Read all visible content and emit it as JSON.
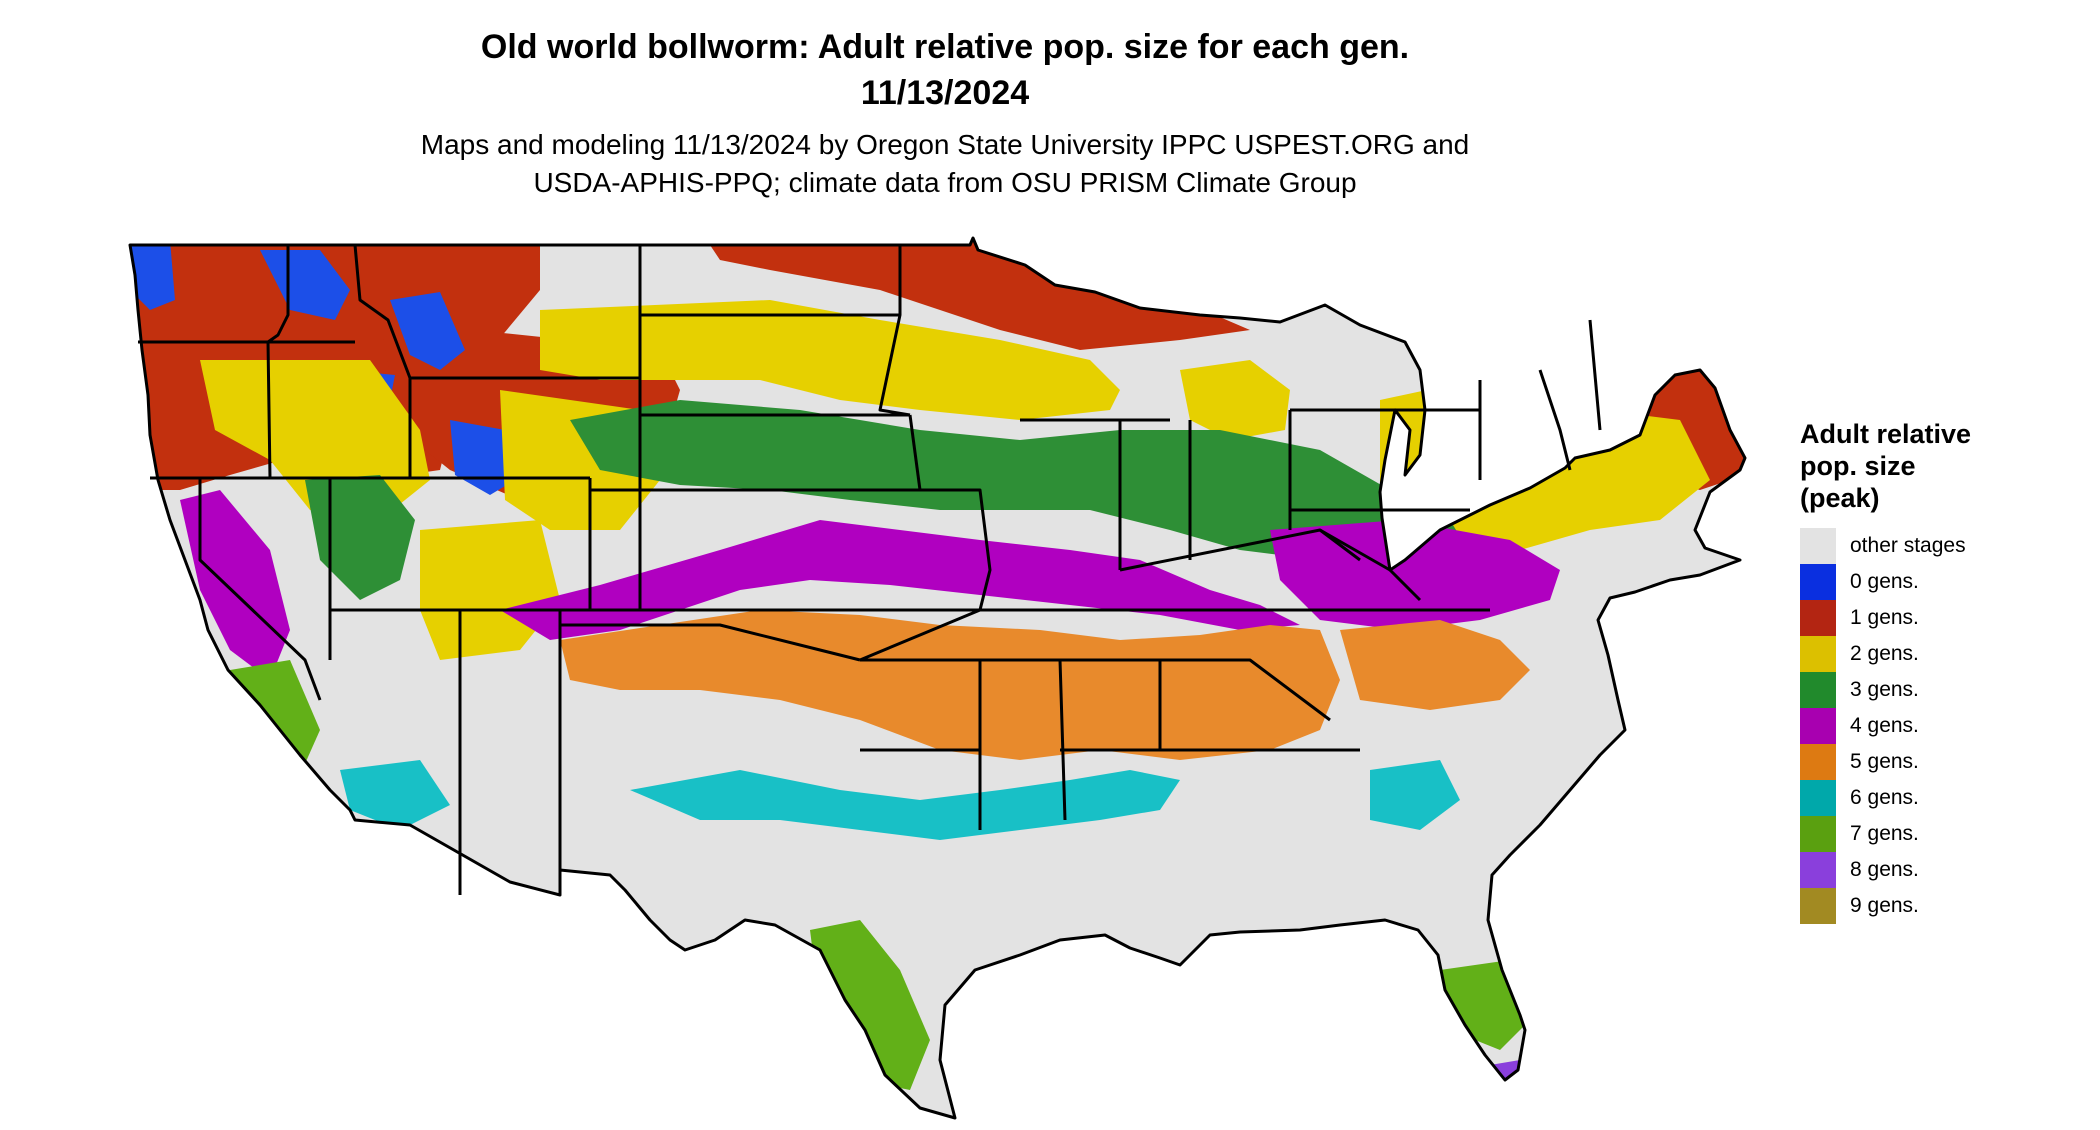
{
  "header": {
    "title_line1": "Old world bollworm: Adult relative pop. size for each gen.",
    "title_line2": "11/13/2024",
    "subtitle_line1": "Maps and modeling 11/13/2024 by Oregon State University IPPC USPEST.ORG and",
    "subtitle_line2": "USDA-APHIS-PPQ; climate data from OSU PRISM Climate Group"
  },
  "legend": {
    "title_line1": "Adult relative",
    "title_line2": "pop. size",
    "title_line3": "(peak)",
    "items": [
      {
        "label": "other stages",
        "color": "#e3e3e3"
      },
      {
        "label": "0 gens.",
        "color": "#0a2fe0"
      },
      {
        "label": "1 gens.",
        "color": "#b32512"
      },
      {
        "label": "2 gens.",
        "color": "#dcc000"
      },
      {
        "label": "3 gens.",
        "color": "#218a2c"
      },
      {
        "label": "4 gens.",
        "color": "#a800b0"
      },
      {
        "label": "5 gens.",
        "color": "#dd7a12"
      },
      {
        "label": "6 gens.",
        "color": "#00a8aa"
      },
      {
        "label": "7 gens.",
        "color": "#5aa010"
      },
      {
        "label": "8 gens.",
        "color": "#8a3fdc"
      },
      {
        "label": "9 gens.",
        "color": "#a28a22"
      }
    ]
  },
  "map": {
    "region": "contiguous United States",
    "state_borders": true,
    "zone_colors": {
      "land": "#e3e3e3",
      "gen0": "#1c4fe8",
      "gen1": "#c2300e",
      "gen2": "#e6d000",
      "gen3": "#2e8f36",
      "gen4": "#b000c0",
      "gen5": "#e88a2c",
      "gen6": "#18c0c6",
      "gen7": "#62b018",
      "gen8": "#8a3fdc"
    }
  }
}
